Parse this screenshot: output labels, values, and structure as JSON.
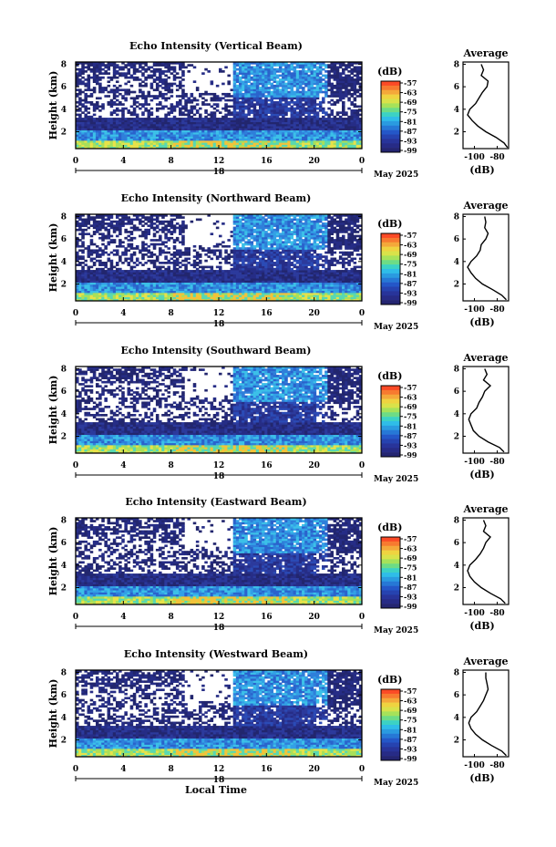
{
  "chart_data": [
    {
      "type": "heatmap",
      "title": "Echo Intensity (Vertical Beam)",
      "ylabel": "Height (km)",
      "yticks": [
        "2",
        "4",
        "6",
        "8"
      ],
      "ylim": [
        0.5,
        8.2
      ],
      "xticks": [
        "0",
        "4",
        "8",
        "12",
        "16",
        "20",
        "0"
      ],
      "xlim": [
        0,
        24
      ],
      "date_day": "18",
      "date_label": "May 2025",
      "colorbar": {
        "label": "(dB)",
        "ticks": [
          "-57",
          "-63",
          "-69",
          "-75",
          "-81",
          "-87",
          "-93",
          "-99"
        ]
      },
      "average_panel": {
        "title": "Average",
        "xlabel": "(dB)",
        "xticks": [
          "-100",
          "-80"
        ],
        "xlim": [
          -110,
          -70
        ],
        "yticks": [
          "2",
          "4",
          "6",
          "8"
        ],
        "profile": [
          {
            "h": 0.6,
            "db": -71
          },
          {
            "h": 1.0,
            "db": -74
          },
          {
            "h": 1.5,
            "db": -81
          },
          {
            "h": 2.0,
            "db": -90
          },
          {
            "h": 2.5,
            "db": -97
          },
          {
            "h": 3.0,
            "db": -102
          },
          {
            "h": 3.5,
            "db": -106
          },
          {
            "h": 4.0,
            "db": -104
          },
          {
            "h": 4.5,
            "db": -99
          },
          {
            "h": 5.0,
            "db": -96
          },
          {
            "h": 5.5,
            "db": -93
          },
          {
            "h": 6.0,
            "db": -89
          },
          {
            "h": 6.5,
            "db": -88
          },
          {
            "h": 7.0,
            "db": -94
          },
          {
            "h": 7.5,
            "db": -92
          },
          {
            "h": 8.0,
            "db": -94
          }
        ]
      }
    },
    {
      "type": "heatmap",
      "title": "Echo Intensity (Northward Beam)",
      "ylabel": "Height (km)",
      "yticks": [
        "2",
        "4",
        "6",
        "8"
      ],
      "ylim": [
        0.5,
        8.2
      ],
      "xticks": [
        "0",
        "4",
        "8",
        "12",
        "16",
        "20",
        "0"
      ],
      "xlim": [
        0,
        24
      ],
      "date_day": "18",
      "date_label": "May 2025",
      "colorbar": {
        "label": "(dB)",
        "ticks": [
          "-57",
          "-63",
          "-69",
          "-75",
          "-81",
          "-87",
          "-93",
          "-99"
        ]
      },
      "average_panel": {
        "title": "Average",
        "xlabel": "(dB)",
        "xticks": [
          "-100",
          "-80"
        ],
        "xlim": [
          -110,
          -70
        ],
        "yticks": [
          "2",
          "4",
          "6",
          "8"
        ],
        "profile": [
          {
            "h": 0.6,
            "db": -72
          },
          {
            "h": 1.0,
            "db": -76
          },
          {
            "h": 1.5,
            "db": -84
          },
          {
            "h": 2.0,
            "db": -93
          },
          {
            "h": 2.5,
            "db": -99
          },
          {
            "h": 3.0,
            "db": -103
          },
          {
            "h": 3.5,
            "db": -106
          },
          {
            "h": 4.0,
            "db": -103
          },
          {
            "h": 4.5,
            "db": -98
          },
          {
            "h": 5.0,
            "db": -95
          },
          {
            "h": 5.5,
            "db": -94
          },
          {
            "h": 6.0,
            "db": -90
          },
          {
            "h": 6.5,
            "db": -88
          },
          {
            "h": 7.0,
            "db": -91
          },
          {
            "h": 7.5,
            "db": -90
          },
          {
            "h": 8.0,
            "db": -91
          }
        ]
      }
    },
    {
      "type": "heatmap",
      "title": "Echo Intensity (Southward Beam)",
      "ylabel": "Height (km)",
      "yticks": [
        "2",
        "4",
        "6",
        "8"
      ],
      "ylim": [
        0.5,
        8.2
      ],
      "xticks": [
        "0",
        "4",
        "8",
        "12",
        "16",
        "20",
        "0"
      ],
      "xlim": [
        0,
        24
      ],
      "date_day": "18",
      "date_label": "May 2025",
      "colorbar": {
        "label": "(dB)",
        "ticks": [
          "-57",
          "-63",
          "-69",
          "-75",
          "-81",
          "-87",
          "-93",
          "-99"
        ]
      },
      "average_panel": {
        "title": "Average",
        "xlabel": "(dB)",
        "xticks": [
          "-100",
          "-80"
        ],
        "xlim": [
          -110,
          -70
        ],
        "yticks": [
          "2",
          "4",
          "6",
          "8"
        ],
        "profile": [
          {
            "h": 0.6,
            "db": -74
          },
          {
            "h": 1.0,
            "db": -78
          },
          {
            "h": 1.5,
            "db": -88
          },
          {
            "h": 2.0,
            "db": -96
          },
          {
            "h": 2.5,
            "db": -101
          },
          {
            "h": 3.0,
            "db": -103
          },
          {
            "h": 3.5,
            "db": -105
          },
          {
            "h": 4.0,
            "db": -103
          },
          {
            "h": 4.5,
            "db": -98
          },
          {
            "h": 5.0,
            "db": -96
          },
          {
            "h": 5.5,
            "db": -93
          },
          {
            "h": 6.0,
            "db": -91
          },
          {
            "h": 6.5,
            "db": -86
          },
          {
            "h": 7.0,
            "db": -92
          },
          {
            "h": 7.5,
            "db": -89
          },
          {
            "h": 8.0,
            "db": -91
          }
        ]
      }
    },
    {
      "type": "heatmap",
      "title": "Echo Intensity (Eastward Beam)",
      "ylabel": "Height (km)",
      "yticks": [
        "2",
        "4",
        "6",
        "8"
      ],
      "ylim": [
        0.5,
        8.2
      ],
      "xticks": [
        "0",
        "4",
        "8",
        "12",
        "16",
        "20",
        "0"
      ],
      "xlim": [
        0,
        24
      ],
      "date_day": "18",
      "date_label": "May 2025",
      "colorbar": {
        "label": "(dB)",
        "ticks": [
          "-57",
          "-63",
          "-69",
          "-75",
          "-81",
          "-87",
          "-93",
          "-99"
        ]
      },
      "average_panel": {
        "title": "Average",
        "xlabel": "(dB)",
        "xticks": [
          "-100",
          "-80"
        ],
        "xlim": [
          -110,
          -70
        ],
        "yticks": [
          "2",
          "4",
          "6",
          "8"
        ],
        "profile": [
          {
            "h": 0.6,
            "db": -73
          },
          {
            "h": 1.0,
            "db": -77
          },
          {
            "h": 1.5,
            "db": -86
          },
          {
            "h": 2.0,
            "db": -94
          },
          {
            "h": 2.5,
            "db": -100
          },
          {
            "h": 3.0,
            "db": -104
          },
          {
            "h": 3.5,
            "db": -106
          },
          {
            "h": 4.0,
            "db": -104
          },
          {
            "h": 4.5,
            "db": -99
          },
          {
            "h": 5.0,
            "db": -95
          },
          {
            "h": 5.5,
            "db": -92
          },
          {
            "h": 6.0,
            "db": -90
          },
          {
            "h": 6.5,
            "db": -86
          },
          {
            "h": 7.0,
            "db": -92
          },
          {
            "h": 7.5,
            "db": -90
          },
          {
            "h": 8.0,
            "db": -92
          }
        ]
      }
    },
    {
      "type": "heatmap",
      "title": "Echo Intensity (Westward Beam)",
      "ylabel": "Height (km)",
      "yticks": [
        "2",
        "4",
        "6",
        "8"
      ],
      "ylim": [
        0.5,
        8.2
      ],
      "xticks": [
        "0",
        "4",
        "8",
        "12",
        "16",
        "20",
        "0"
      ],
      "xlim": [
        0,
        24
      ],
      "date_day": "18",
      "date_label": "May 2025",
      "xlabel": "Local Time",
      "colorbar": {
        "label": "(dB)",
        "ticks": [
          "-57",
          "-63",
          "-69",
          "-75",
          "-81",
          "-87",
          "-93",
          "-99"
        ]
      },
      "average_panel": {
        "title": "Average",
        "xlabel": "(dB)",
        "xticks": [
          "-100",
          "-80"
        ],
        "xlim": [
          -110,
          -70
        ],
        "yticks": [
          "2",
          "4",
          "6",
          "8"
        ],
        "profile": [
          {
            "h": 0.6,
            "db": -72
          },
          {
            "h": 1.0,
            "db": -76
          },
          {
            "h": 1.5,
            "db": -85
          },
          {
            "h": 2.0,
            "db": -93
          },
          {
            "h": 2.5,
            "db": -99
          },
          {
            "h": 3.0,
            "db": -103
          },
          {
            "h": 3.5,
            "db": -105
          },
          {
            "h": 4.0,
            "db": -103
          },
          {
            "h": 4.5,
            "db": -98
          },
          {
            "h": 5.0,
            "db": -95
          },
          {
            "h": 5.5,
            "db": -92
          },
          {
            "h": 6.0,
            "db": -90
          },
          {
            "h": 6.5,
            "db": -88
          },
          {
            "h": 7.0,
            "db": -89
          },
          {
            "h": 7.5,
            "db": -90
          },
          {
            "h": 8.0,
            "db": -90
          }
        ]
      }
    }
  ],
  "colormap": [
    "#fb5a2c",
    "#f6a23a",
    "#f2de3c",
    "#9ee25a",
    "#33d2c8",
    "#2a9be0",
    "#2457c8",
    "#272f8f"
  ]
}
